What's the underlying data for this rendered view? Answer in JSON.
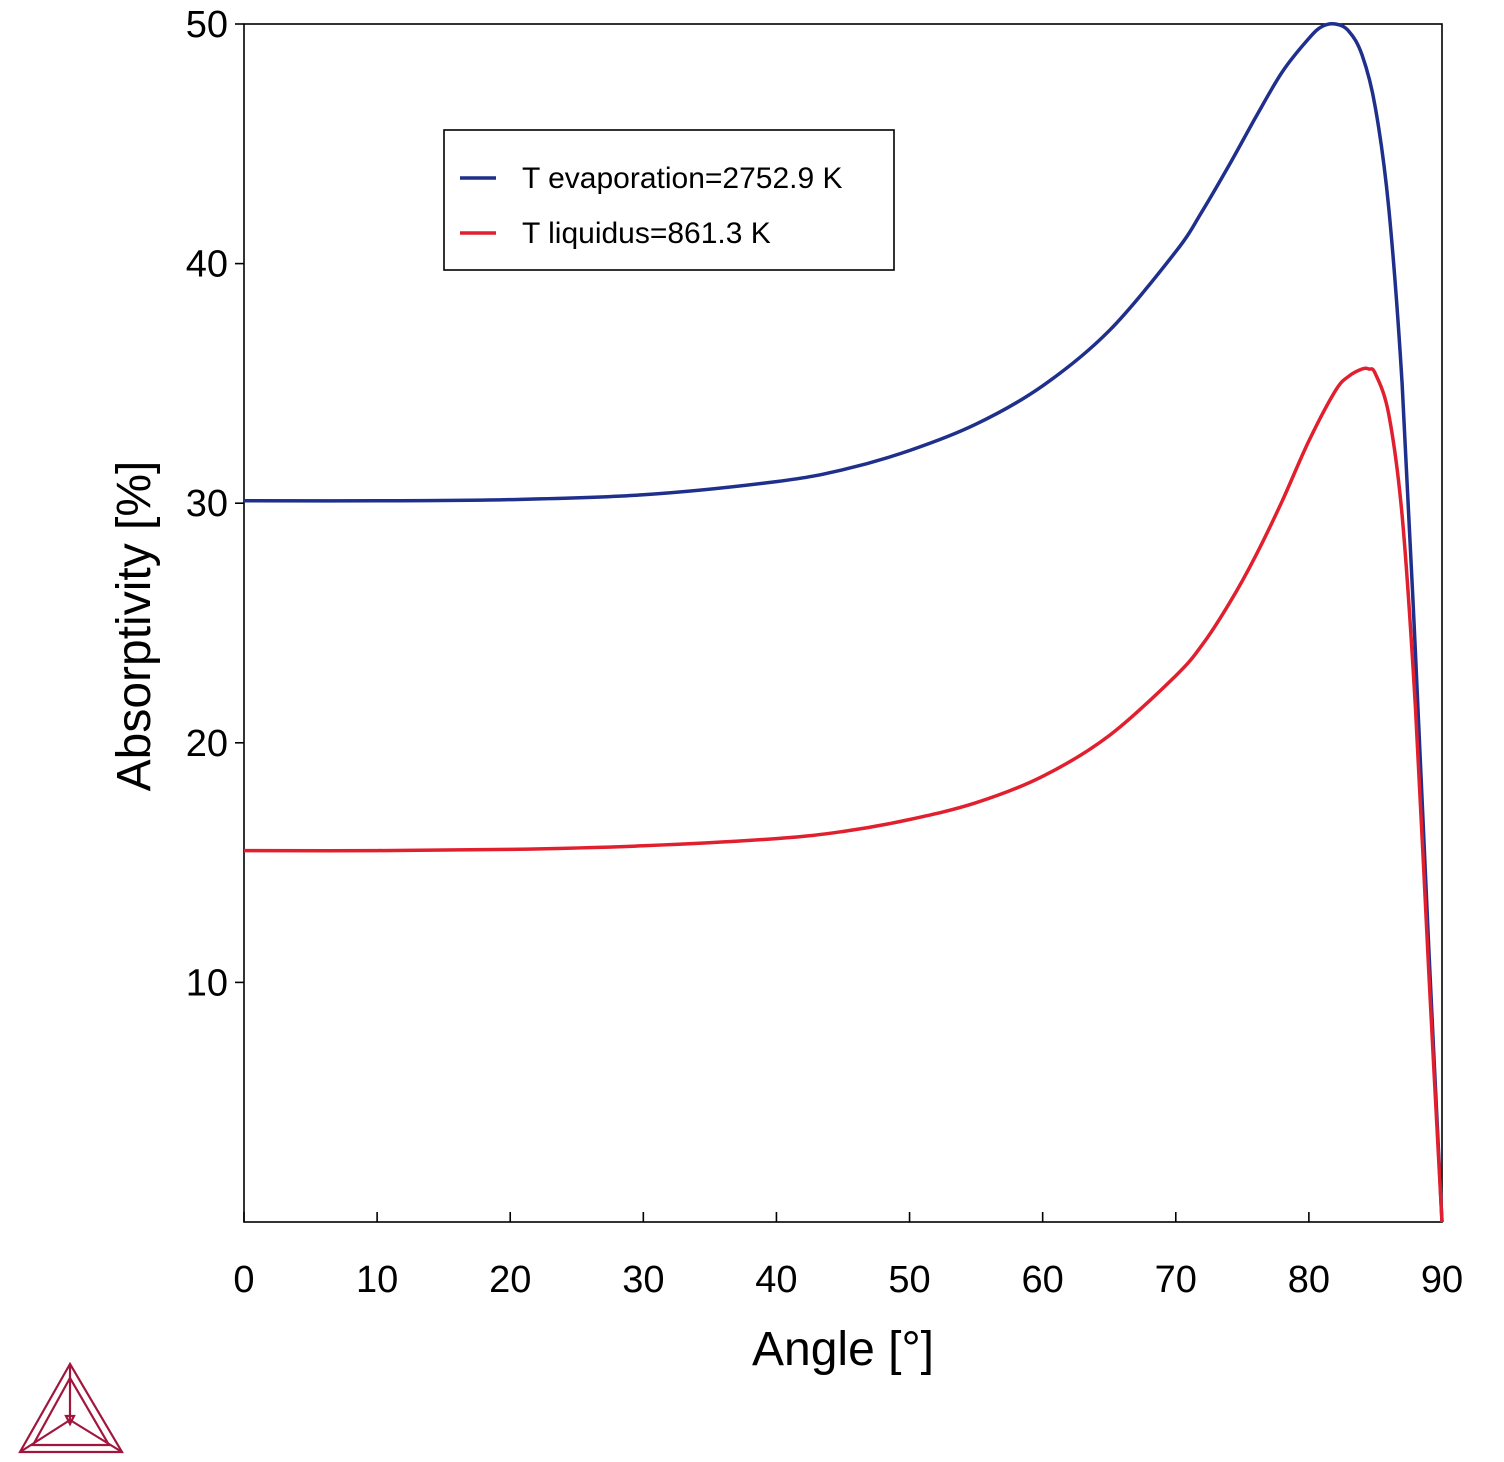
{
  "chart_data": {
    "type": "line",
    "title": "",
    "xlabel": "Angle [°]",
    "ylabel": "Absorptivity [%]",
    "xlim": [
      0,
      90
    ],
    "ylim": [
      0,
      50
    ],
    "x_ticks": [
      "0",
      "10",
      "20",
      "30",
      "40",
      "50",
      "60",
      "70",
      "80",
      "90"
    ],
    "y_ticks": [
      "10",
      "20",
      "30",
      "40",
      "50"
    ],
    "grid": false,
    "legend_position": "top-left",
    "series": [
      {
        "name": "T evaporation=2752.9 K",
        "color": "#1f2f8c",
        "x": [
          0,
          10,
          20,
          30,
          40,
          45,
          50,
          55,
          60,
          65,
          70,
          72,
          74,
          76,
          78,
          80,
          81,
          82,
          83,
          84,
          85,
          86,
          87,
          88,
          89,
          90
        ],
        "y": [
          30.1,
          30.1,
          30.15,
          30.35,
          30.9,
          31.4,
          32.2,
          33.3,
          34.9,
          37.2,
          40.5,
          42.2,
          44.1,
          46.1,
          48.0,
          49.4,
          49.9,
          50.0,
          49.7,
          48.7,
          46.5,
          42.3,
          35.0,
          23.8,
          11.5,
          0.0
        ]
      },
      {
        "name": "T liquidus=861.3 K",
        "color": "#e0202e",
        "x": [
          0,
          10,
          20,
          30,
          40,
          45,
          50,
          55,
          60,
          65,
          70,
          72,
          74,
          76,
          78,
          80,
          82,
          83,
          84,
          84.5,
          85,
          86,
          87,
          88,
          89,
          90
        ],
        "y": [
          15.5,
          15.5,
          15.55,
          15.7,
          16.0,
          16.3,
          16.8,
          17.5,
          18.6,
          20.3,
          22.8,
          24.1,
          25.8,
          27.8,
          30.1,
          32.6,
          34.7,
          35.3,
          35.6,
          35.6,
          35.4,
          33.7,
          29.5,
          21.5,
          10.5,
          0.0
        ]
      }
    ]
  }
}
